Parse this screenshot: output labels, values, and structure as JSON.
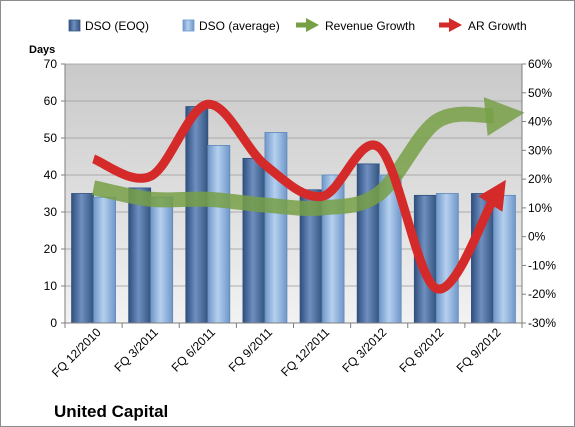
{
  "chart_data": {
    "type": "bar",
    "title": "",
    "company_label": "United Capital",
    "ylabel": "Days",
    "ylim": [
      0,
      70
    ],
    "y_ticks": [
      "0",
      "10",
      "20",
      "30",
      "40",
      "50",
      "60",
      "70"
    ],
    "y2lim": [
      -30,
      60
    ],
    "y2_ticks": [
      "-30%",
      "-20%",
      "-10%",
      "0%",
      "10%",
      "20%",
      "30%",
      "40%",
      "50%",
      "60%"
    ],
    "categories": [
      "FQ 12/2010",
      "FQ 3/2011",
      "FQ 6/2011",
      "FQ 9/2011",
      "FQ 12/2011",
      "FQ 3/2012",
      "FQ 6/2012",
      "FQ 9/2012"
    ],
    "series": [
      {
        "name": "DSO (EOQ)",
        "kind": "bar",
        "axis": "left",
        "color": "#4a6fa5",
        "values": [
          35,
          36.5,
          58.5,
          44.5,
          36,
          43,
          34.5,
          35
        ]
      },
      {
        "name": "DSO (average)",
        "kind": "bar",
        "axis": "left",
        "color": "#8db3e2",
        "values": [
          34,
          34,
          48,
          51.5,
          40,
          40,
          35,
          34.5
        ]
      },
      {
        "name": "Revenue Growth",
        "kind": "line",
        "axis": "right",
        "color": "#77a046",
        "values": [
          17,
          13,
          13,
          11,
          10,
          15,
          40,
          42
        ]
      },
      {
        "name": "AR Growth",
        "kind": "line",
        "axis": "right",
        "color": "#d42a2a",
        "values": [
          27,
          21,
          46,
          25,
          14,
          31,
          -18,
          13
        ]
      }
    ],
    "grid": true,
    "legend_position": "top"
  }
}
